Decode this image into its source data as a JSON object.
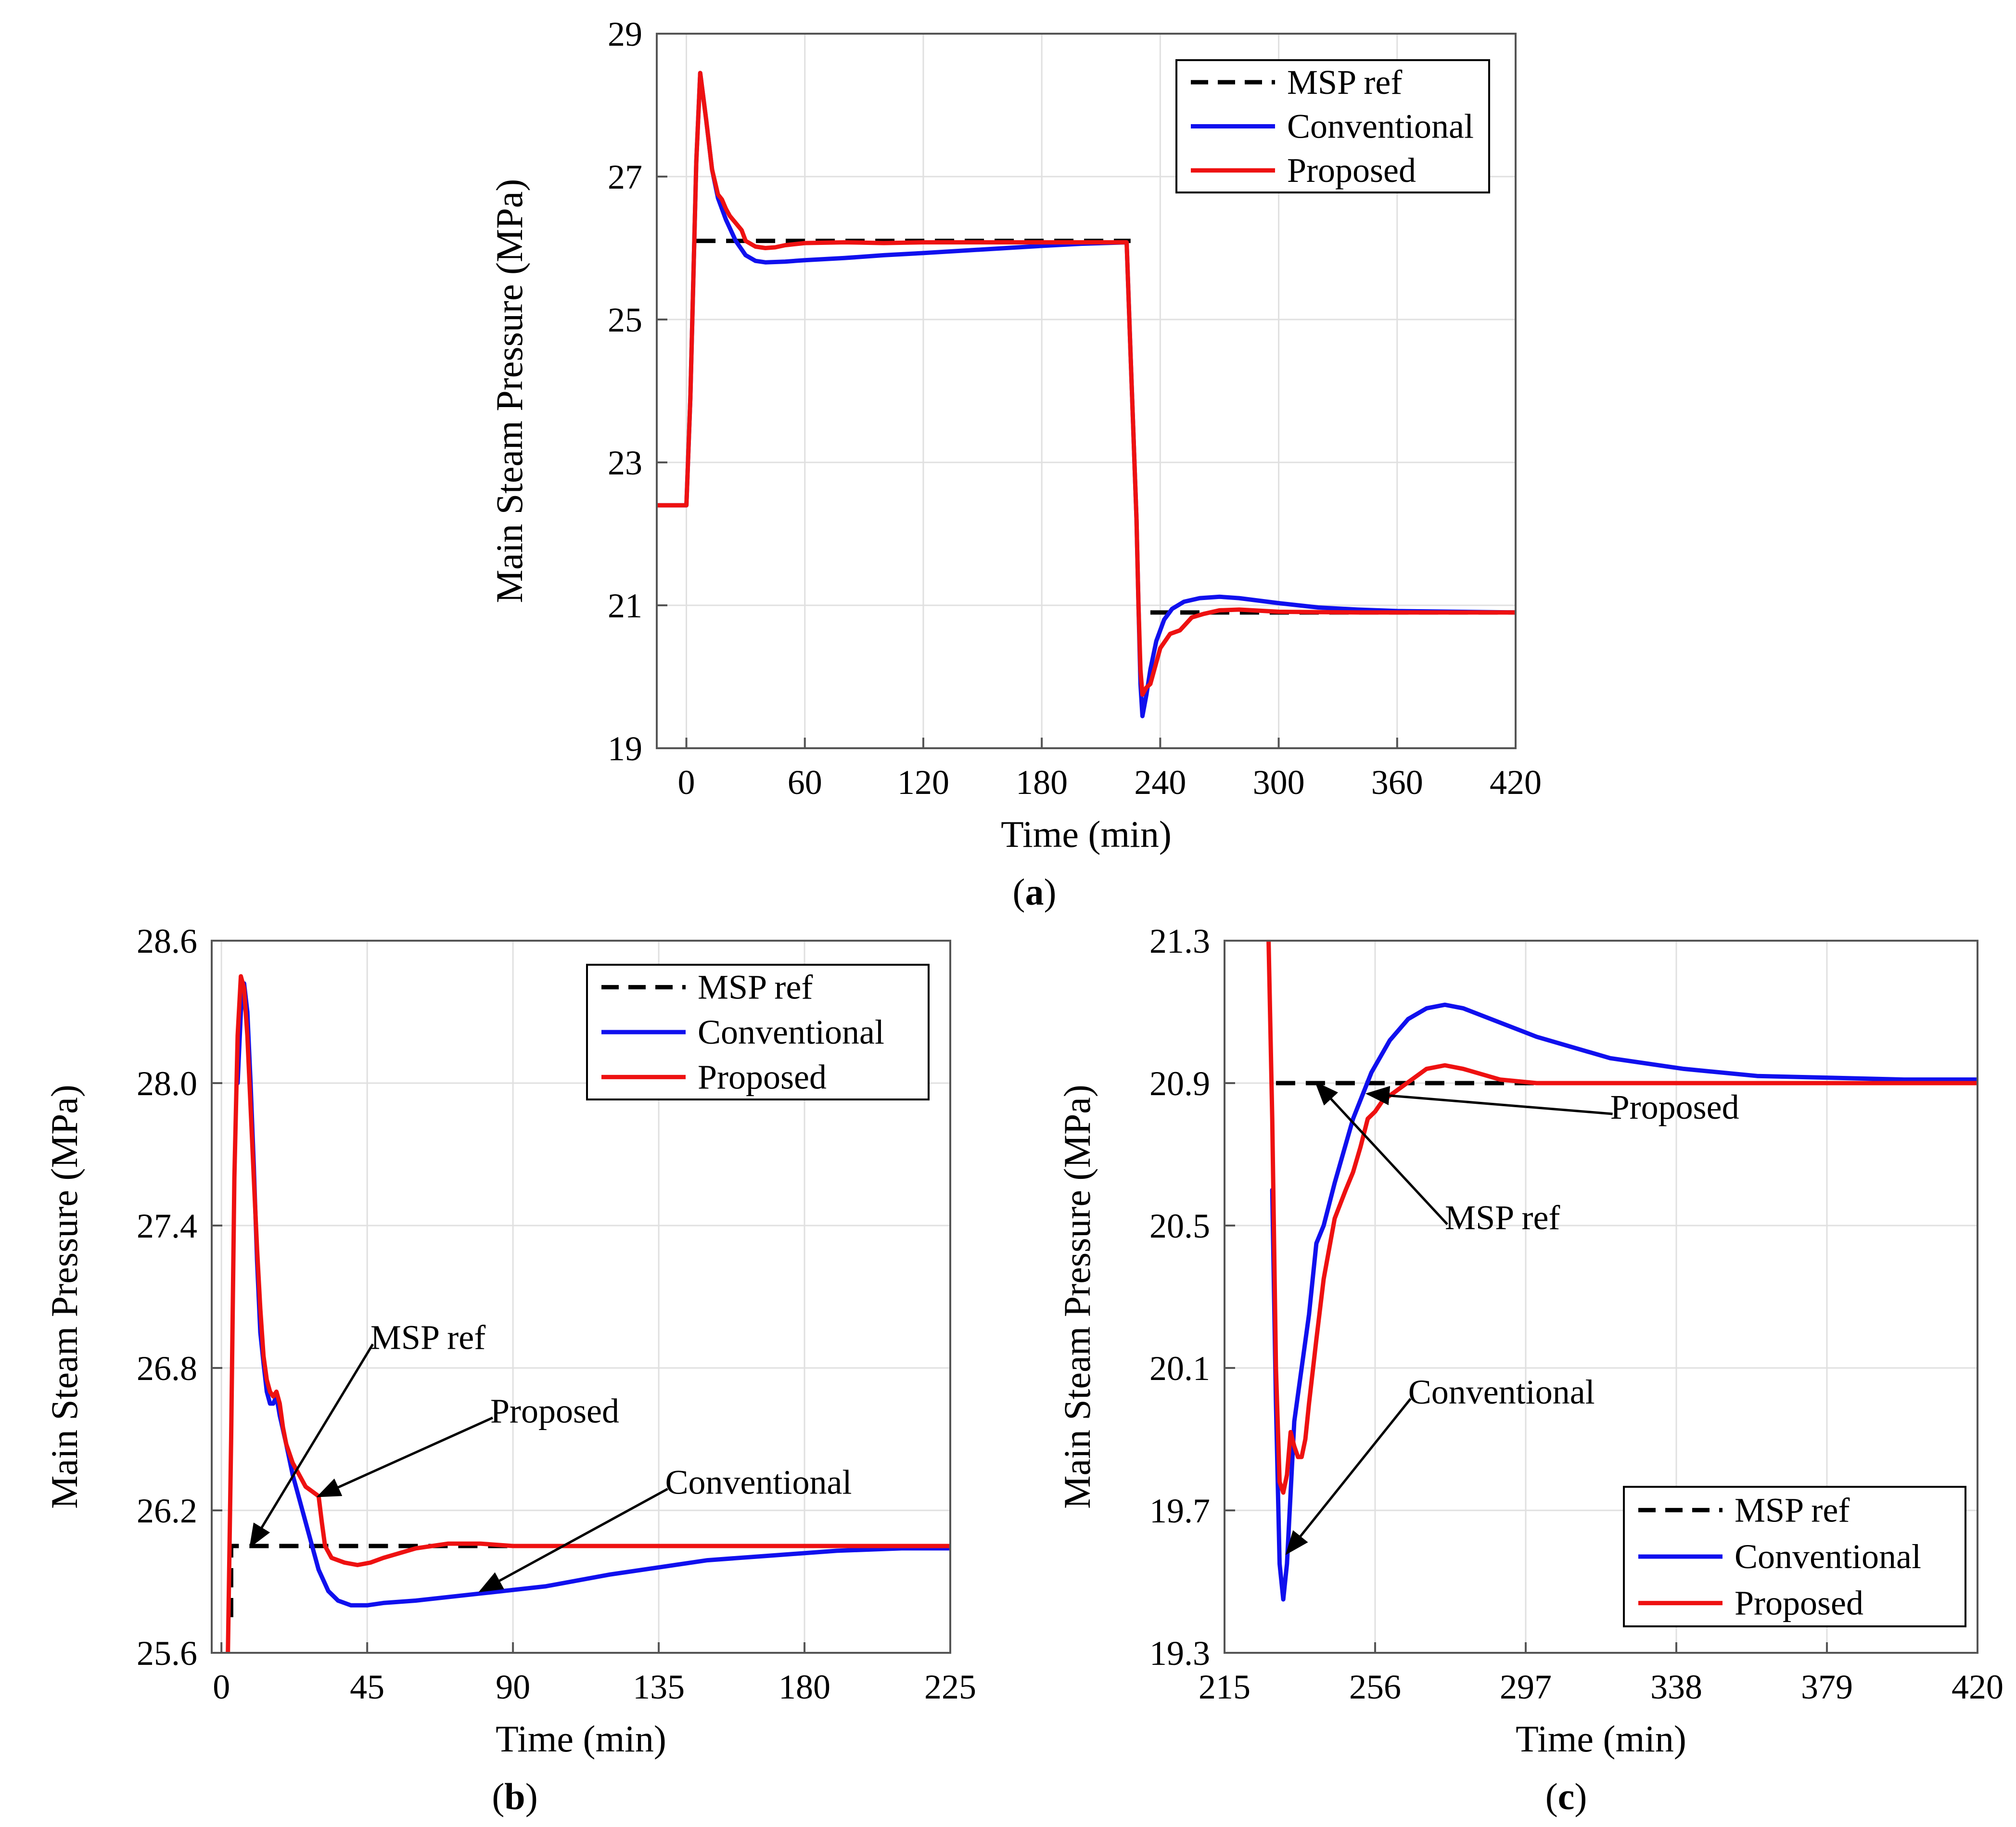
{
  "colors": {
    "ref": "#000000",
    "conventional": "#1010ee",
    "proposed": "#ee1111"
  },
  "chart_data": [
    {
      "id": "a",
      "type": "line",
      "caption_letter": "a",
      "xlabel": "Time (min)",
      "ylabel": "Main Steam Pressure (MPa)",
      "xlim": [
        -15,
        420
      ],
      "ylim": [
        19,
        29
      ],
      "xticks": [
        0,
        60,
        120,
        180,
        240,
        300,
        360,
        420
      ],
      "xtick_labels": [
        "0",
        "60",
        "120",
        "180",
        "240",
        "300",
        "360",
        "420"
      ],
      "yticks": [
        19,
        21,
        23,
        25,
        27,
        29
      ],
      "ytick_labels": [
        "19",
        "21",
        "23",
        "25",
        "27",
        "29"
      ],
      "legend": [
        "MSP ref",
        "Conventional",
        "Proposed"
      ],
      "series": [
        {
          "name": "MSP ref",
          "style": "dashed",
          "x": [
            5,
            60,
            60,
            225
          ],
          "y": [
            26.1,
            26.1,
            26.1,
            26.1
          ]
        },
        {
          "name": "MSP ref",
          "style": "dashed",
          "x": [
            235,
            420
          ],
          "y": [
            20.9,
            20.9
          ]
        },
        {
          "name": "Conventional",
          "x": [
            -15,
            0,
            2,
            5,
            7,
            10,
            13,
            16,
            20,
            25,
            30,
            35,
            40,
            50,
            60,
            80,
            100,
            120,
            150,
            180,
            200,
            223,
            225,
            228,
            229,
            230,
            231,
            233,
            235,
            238,
            242,
            246,
            252,
            260,
            270,
            280,
            300,
            320,
            340,
            360,
            390,
            420
          ],
          "y": [
            22.4,
            22.4,
            23.9,
            27.2,
            28.45,
            27.8,
            27.1,
            26.7,
            26.4,
            26.1,
            25.9,
            25.82,
            25.8,
            25.81,
            25.83,
            25.86,
            25.9,
            25.93,
            25.98,
            26.03,
            26.06,
            26.08,
            24.5,
            22.2,
            21.0,
            19.9,
            19.45,
            19.75,
            20.1,
            20.5,
            20.8,
            20.95,
            21.05,
            21.1,
            21.12,
            21.1,
            21.03,
            20.97,
            20.94,
            20.92,
            20.91,
            20.9
          ]
        },
        {
          "name": "Proposed",
          "x": [
            -15,
            0,
            2,
            5,
            7,
            10,
            13,
            16,
            18,
            20,
            22,
            25,
            28,
            30,
            35,
            40,
            45,
            50,
            60,
            80,
            100,
            120,
            150,
            180,
            200,
            223,
            225,
            228,
            229,
            230,
            231,
            233,
            235,
            238,
            240,
            245,
            250,
            256,
            262,
            270,
            280,
            300,
            340,
            380,
            420
          ],
          "y": [
            22.4,
            22.4,
            23.9,
            27.2,
            28.45,
            27.8,
            27.1,
            26.75,
            26.68,
            26.55,
            26.45,
            26.35,
            26.25,
            26.1,
            26.02,
            26.0,
            26.01,
            26.04,
            26.07,
            26.08,
            26.07,
            26.08,
            26.08,
            26.08,
            26.08,
            26.08,
            24.5,
            22.2,
            21.0,
            20.1,
            19.75,
            19.85,
            19.9,
            20.2,
            20.4,
            20.6,
            20.65,
            20.83,
            20.88,
            20.93,
            20.94,
            20.91,
            20.9,
            20.9,
            20.9
          ]
        }
      ]
    },
    {
      "id": "b",
      "type": "line",
      "caption_letter": "b",
      "xlabel": "Time (min)",
      "ylabel": "Main Steam Pressure (MPa)",
      "xlim": [
        -3,
        225
      ],
      "ylim": [
        25.6,
        28.6
      ],
      "xticks": [
        0,
        45,
        90,
        135,
        180,
        225
      ],
      "xtick_labels": [
        "0",
        "45",
        "90",
        "135",
        "180",
        "225"
      ],
      "yticks": [
        25.6,
        26.2,
        26.8,
        27.4,
        28.0,
        28.6
      ],
      "ytick_labels": [
        "25.6",
        "26.2",
        "26.8",
        "27.4",
        "28.0",
        "28.6"
      ],
      "legend": [
        "MSP ref",
        "Conventional",
        "Proposed"
      ],
      "annotations": [
        {
          "text": "MSP ref",
          "x": 9,
          "y": 26.05,
          "tx": 46,
          "ty": 26.88
        },
        {
          "text": "Proposed",
          "x": 30,
          "y": 26.26,
          "tx": 83,
          "ty": 26.57
        },
        {
          "text": "Conventional",
          "x": 80,
          "y": 25.86,
          "tx": 137,
          "ty": 26.27
        }
      ],
      "series": [
        {
          "name": "MSP ref",
          "style": "dashed",
          "x": [
            3,
            3,
            225
          ],
          "y": [
            25.75,
            26.05,
            26.05
          ]
        },
        {
          "name": "Conventional",
          "x": [
            5,
            6,
            7,
            8,
            9,
            10,
            11,
            12,
            13,
            14,
            15,
            16,
            17,
            18,
            20,
            22,
            25,
            28,
            30,
            33,
            36,
            40,
            45,
            50,
            60,
            80,
            100,
            120,
            135,
            150,
            170,
            190,
            210,
            225
          ],
          "y": [
            28.0,
            28.3,
            28.42,
            28.3,
            28.0,
            27.65,
            27.25,
            26.95,
            26.82,
            26.7,
            26.65,
            26.65,
            26.68,
            26.6,
            26.48,
            26.35,
            26.2,
            26.05,
            25.95,
            25.86,
            25.82,
            25.8,
            25.8,
            25.81,
            25.82,
            25.85,
            25.88,
            25.93,
            25.96,
            25.99,
            26.01,
            26.03,
            26.04,
            26.04
          ]
        },
        {
          "name": "Proposed",
          "x": [
            2,
            3,
            4,
            5,
            6,
            7,
            8,
            9,
            10,
            11,
            12,
            13,
            14,
            15,
            16,
            17,
            18,
            19,
            20,
            22,
            24,
            26,
            28,
            30,
            31,
            32,
            34,
            38,
            42,
            46,
            50,
            55,
            60,
            65,
            70,
            80,
            90,
            110,
            130,
            160,
            190,
            225
          ],
          "y": [
            25.6,
            26.5,
            27.6,
            28.2,
            28.45,
            28.4,
            28.2,
            27.9,
            27.6,
            27.3,
            27.05,
            26.85,
            26.75,
            26.7,
            26.68,
            26.7,
            26.65,
            26.55,
            26.48,
            26.4,
            26.35,
            26.3,
            26.28,
            26.26,
            26.15,
            26.05,
            26.0,
            25.98,
            25.97,
            25.98,
            26.0,
            26.02,
            26.04,
            26.05,
            26.06,
            26.06,
            26.05,
            26.05,
            26.05,
            26.05,
            26.05,
            26.05
          ]
        }
      ]
    },
    {
      "id": "c",
      "type": "line",
      "caption_letter": "c",
      "xlabel": "Time (min)",
      "ylabel": "Main Steam Pressure (MPa)",
      "xlim": [
        215,
        420
      ],
      "ylim": [
        19.3,
        21.3
      ],
      "xticks": [
        215,
        256,
        297,
        338,
        379,
        420
      ],
      "xtick_labels": [
        "215",
        "256",
        "297",
        "338",
        "379",
        "420"
      ],
      "yticks": [
        19.3,
        19.7,
        20.1,
        20.5,
        20.9,
        21.3
      ],
      "ytick_labels": [
        "19.3",
        "19.7",
        "20.1",
        "20.5",
        "20.9",
        "21.3"
      ],
      "legend": [
        "MSP ref",
        "Conventional",
        "Proposed"
      ],
      "annotations": [
        {
          "text": "Proposed",
          "x": 254,
          "y": 20.87,
          "tx": 320,
          "ty": 20.8
        },
        {
          "text": "MSP ref",
          "x": 240,
          "y": 20.9,
          "tx": 275,
          "ty": 20.49
        },
        {
          "text": "Conventional",
          "x": 232,
          "y": 19.58,
          "tx": 265,
          "ty": 20.0
        }
      ],
      "series": [
        {
          "name": "MSP ref",
          "style": "dashed",
          "x": [
            229,
            420
          ],
          "y": [
            20.9,
            20.9
          ]
        },
        {
          "name": "Conventional",
          "x": [
            228,
            229,
            230,
            231,
            232,
            233,
            234,
            236,
            238,
            240,
            242,
            245,
            250,
            255,
            260,
            265,
            270,
            275,
            280,
            290,
            300,
            320,
            340,
            360,
            380,
            400,
            420
          ],
          "y": [
            20.6,
            20.0,
            19.55,
            19.45,
            19.55,
            19.75,
            19.95,
            20.1,
            20.25,
            20.45,
            20.5,
            20.62,
            20.8,
            20.93,
            21.02,
            21.08,
            21.11,
            21.12,
            21.11,
            21.07,
            21.03,
            20.97,
            20.94,
            20.92,
            20.915,
            20.91,
            20.91
          ]
        },
        {
          "name": "Proposed",
          "x": [
            227,
            228,
            229,
            230,
            231,
            232,
            233,
            234,
            235,
            236,
            237,
            238,
            240,
            242,
            245,
            248,
            250,
            252,
            254,
            256,
            258,
            262,
            266,
            270,
            275,
            280,
            290,
            300,
            320,
            360,
            420
          ],
          "y": [
            21.3,
            20.8,
            20.1,
            19.78,
            19.75,
            19.8,
            19.92,
            19.88,
            19.85,
            19.85,
            19.9,
            20.0,
            20.18,
            20.35,
            20.52,
            20.6,
            20.65,
            20.72,
            20.8,
            20.82,
            20.85,
            20.88,
            20.91,
            20.94,
            20.95,
            20.94,
            20.91,
            20.9,
            20.9,
            20.9,
            20.9
          ]
        }
      ]
    }
  ]
}
